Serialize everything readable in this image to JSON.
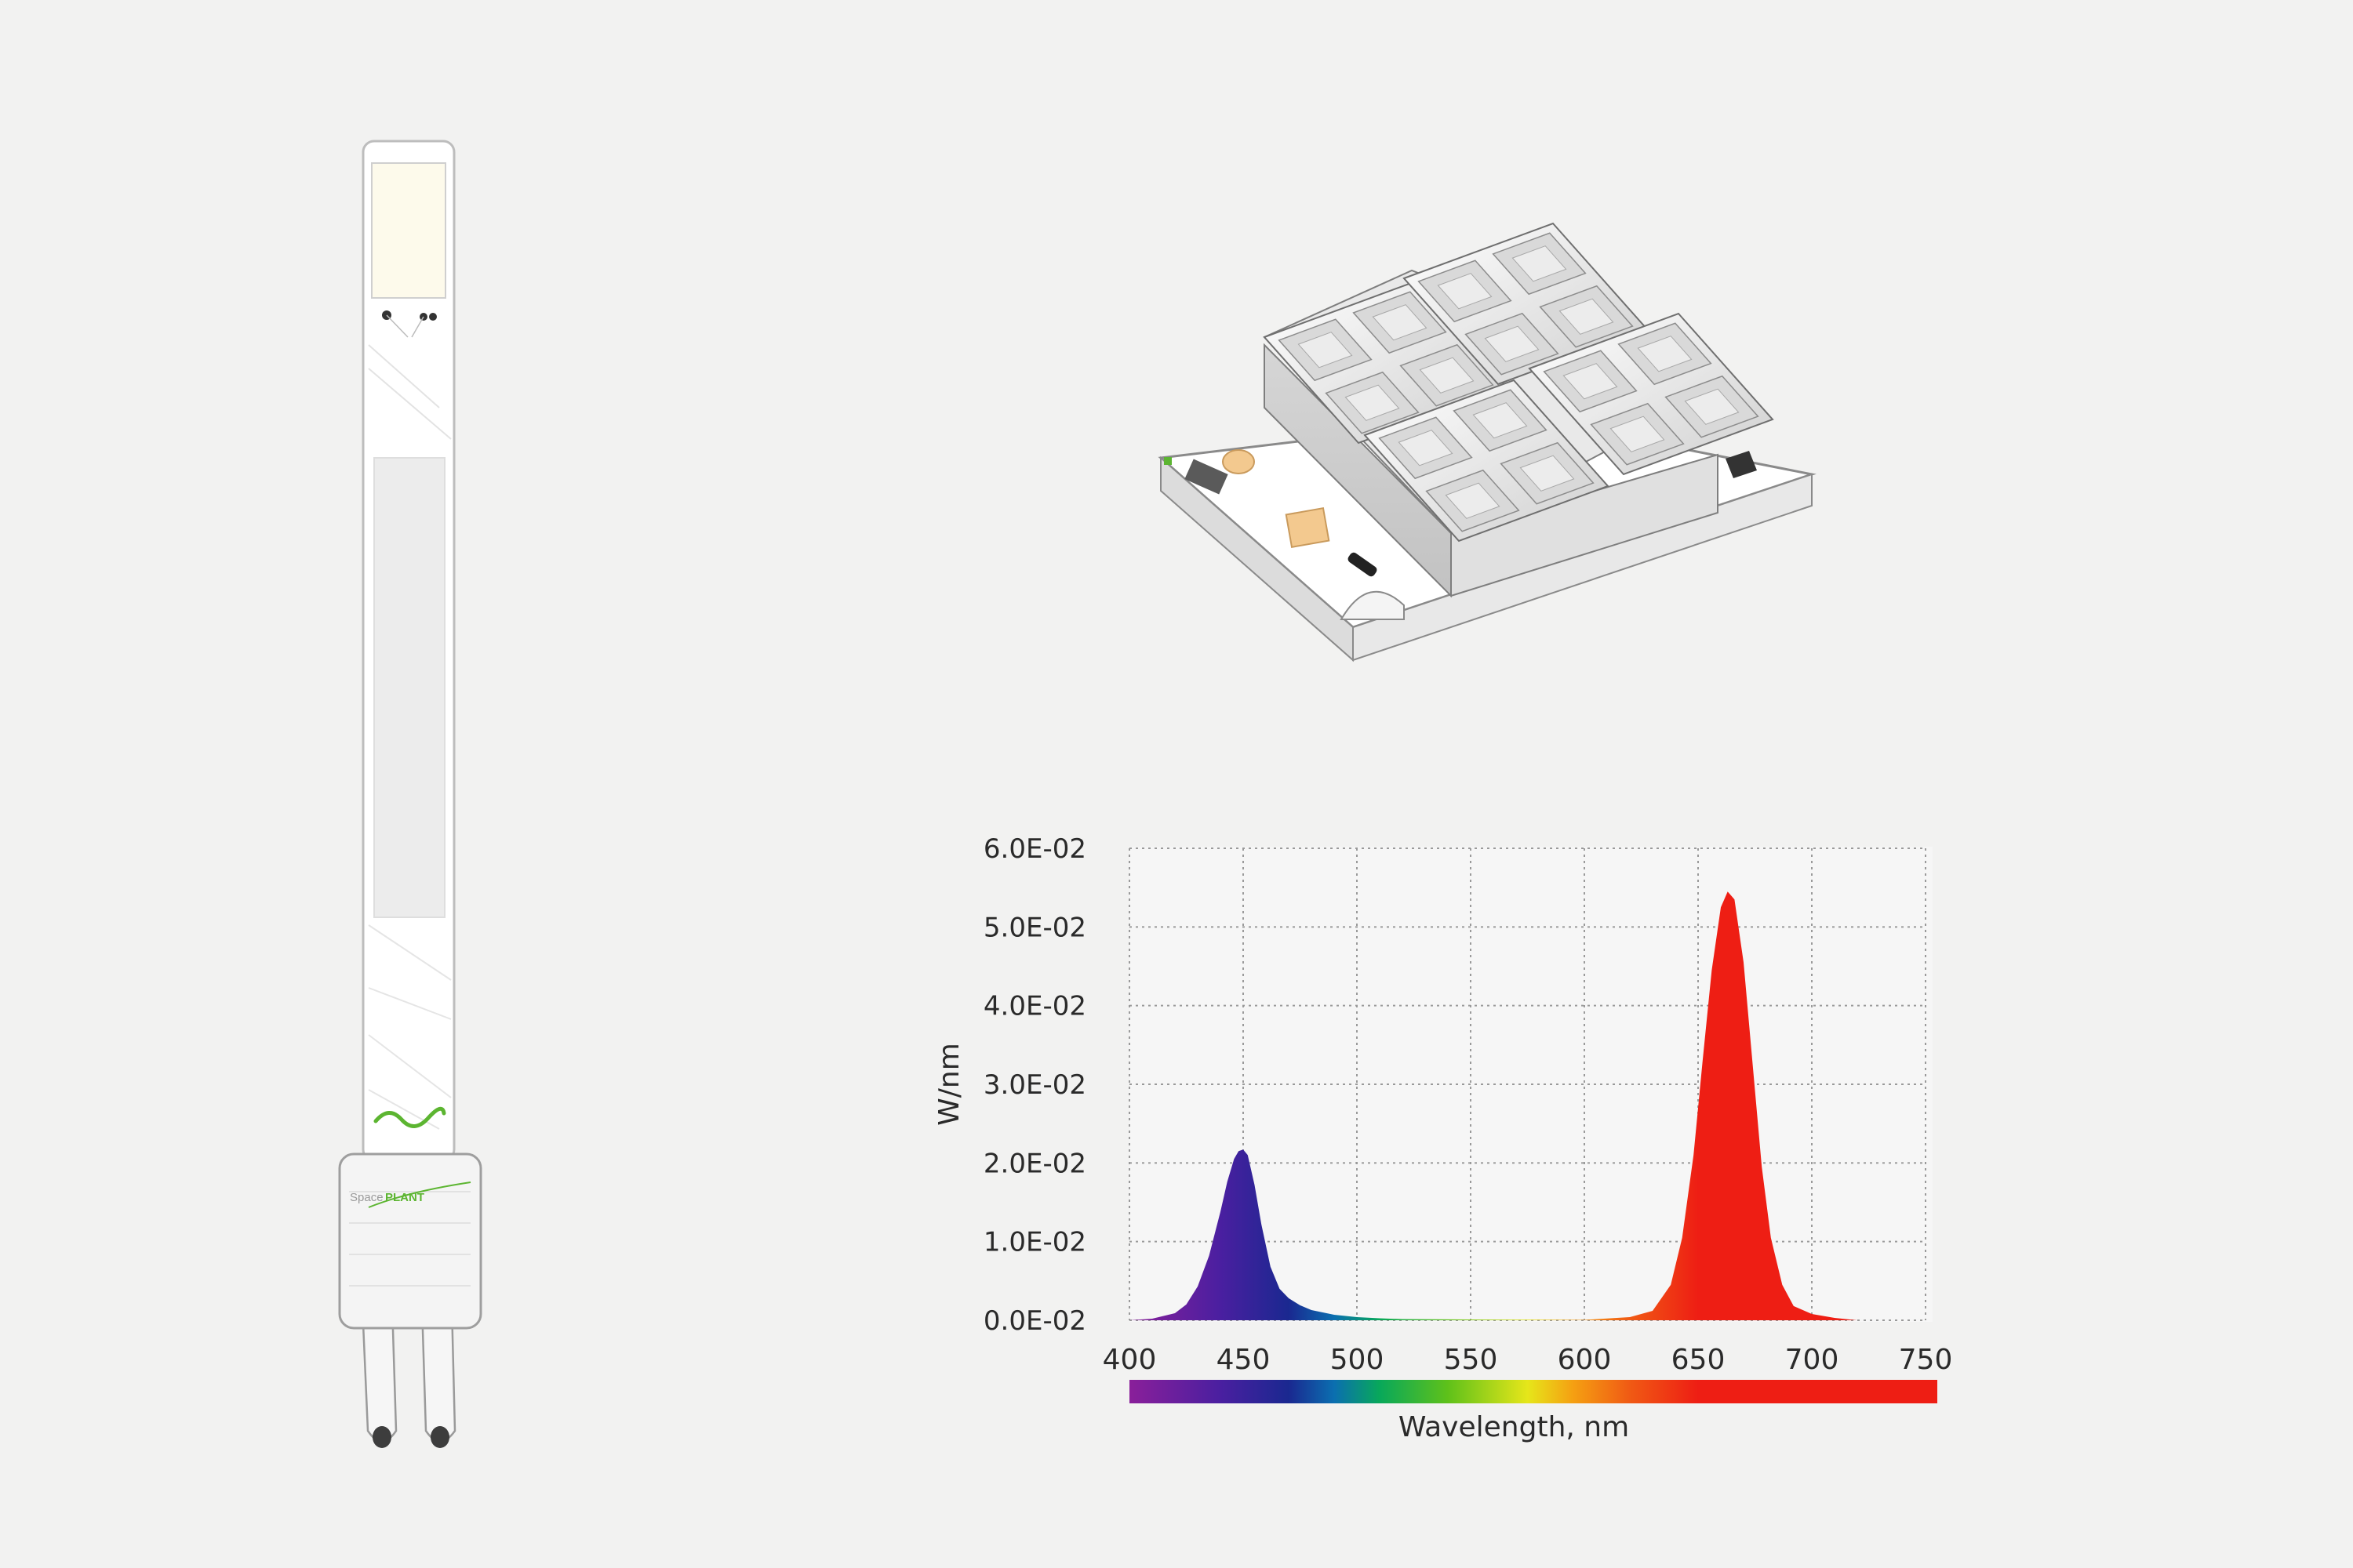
{
  "device": {
    "logo_prefix": "Space",
    "logo_name": "PLANT",
    "colors": {
      "screen": "#fdfaeb",
      "accent": "#5cb531",
      "body": "#ffffff"
    }
  },
  "led_module": {
    "lens_grid": "2x2 modules of 2x2 lenses",
    "colors": {
      "housing": "#d4d4d4",
      "board": "#ffffff",
      "pad": "#f3c98f"
    }
  },
  "chart_data": {
    "type": "area",
    "title": "",
    "xlabel": "Wavelength, nm",
    "ylabel": "W/nm",
    "xlim": [
      400,
      750
    ],
    "ylim": [
      0,
      0.06
    ],
    "x_ticks": [
      400,
      450,
      500,
      550,
      600,
      650,
      700,
      750
    ],
    "y_ticks": [
      0,
      0.01,
      0.02,
      0.03,
      0.04,
      0.05,
      0.06
    ],
    "y_tick_labels": [
      "0.0E-02",
      "1.0E-02",
      "2.0E-02",
      "3.0E-02",
      "4.0E-02",
      "5.0E-02",
      "6.0E-02"
    ],
    "grid": true,
    "series": [
      {
        "x": [
          400,
          410,
          420,
          425,
          430,
          435,
          440,
          443,
          446,
          448,
          450,
          452,
          455,
          458,
          462,
          466,
          470,
          475,
          480,
          490,
          500,
          510,
          520,
          550,
          580,
          600
        ],
        "y": [
          0,
          0.0002,
          0.0009,
          0.002,
          0.0043,
          0.0082,
          0.0138,
          0.0176,
          0.0205,
          0.0215,
          0.0217,
          0.021,
          0.0172,
          0.0122,
          0.0068,
          0.004,
          0.0028,
          0.0019,
          0.0013,
          0.0007,
          0.0004,
          0.00025,
          0.00015,
          0.0001,
          8e-05,
          5e-05
        ],
        "colorscale": "visible-spectrum"
      },
      {
        "x": [
          600,
          620,
          630,
          638,
          643,
          648,
          652,
          656,
          660,
          663,
          666,
          670,
          674,
          678,
          682,
          687,
          692,
          700,
          710,
          720
        ],
        "y": [
          5e-05,
          0.0004,
          0.0012,
          0.0045,
          0.0105,
          0.021,
          0.033,
          0.0445,
          0.0525,
          0.0545,
          0.0535,
          0.0455,
          0.0325,
          0.0195,
          0.0105,
          0.0045,
          0.0018,
          0.0008,
          0.0003,
          0
        ],
        "colorscale": "visible-spectrum"
      }
    ],
    "spectrum_bar": {
      "stops": [
        [
          400,
          "#8a1f9a"
        ],
        [
          440,
          "#4a1fa0"
        ],
        [
          470,
          "#1a2890"
        ],
        [
          490,
          "#0b6fb0"
        ],
        [
          510,
          "#08a85a"
        ],
        [
          540,
          "#5fc11a"
        ],
        [
          575,
          "#e6e61a"
        ],
        [
          595,
          "#f5a012"
        ],
        [
          620,
          "#f05a14"
        ],
        [
          650,
          "#ee1e14"
        ],
        [
          750,
          "#ee1e14"
        ]
      ]
    }
  }
}
